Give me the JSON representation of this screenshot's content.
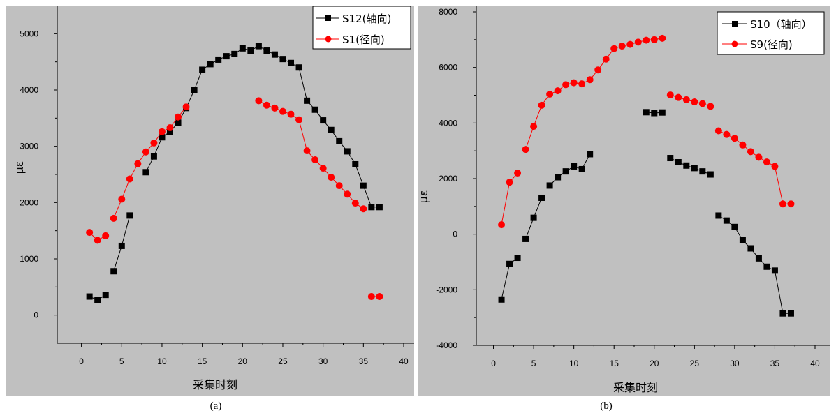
{
  "captions": {
    "a": "(a)",
    "b": "(b)"
  },
  "colors": {
    "panel_bg": "#c0c0c0",
    "series_black": "#000000",
    "series_red": "#ff0000"
  },
  "chart_data": [
    {
      "type": "line",
      "xlabel": "采集时刻",
      "ylabel": "με",
      "xlim": [
        -3,
        40
      ],
      "ylim": [
        -500,
        5500
      ],
      "xticks": [
        0,
        5,
        10,
        15,
        20,
        25,
        30,
        35,
        40
      ],
      "yticks": [
        0,
        1000,
        2000,
        3000,
        4000,
        5000
      ],
      "legend_position": "top-right",
      "grid": false,
      "series": [
        {
          "name": "S12(轴向)",
          "color": "#000000",
          "marker": "square",
          "segments": [
            [
              [
                1,
                330
              ],
              [
                2,
                270
              ],
              [
                3,
                360
              ]
            ],
            [
              [
                4,
                780
              ],
              [
                5,
                1230
              ],
              [
                6,
                1770
              ]
            ],
            [
              [
                8,
                2540
              ],
              [
                9,
                2820
              ],
              [
                10,
                3160
              ],
              [
                11,
                3260
              ],
              [
                12,
                3420
              ],
              [
                13,
                3680
              ],
              [
                14,
                4000
              ],
              [
                15,
                4360
              ],
              [
                16,
                4460
              ],
              [
                17,
                4540
              ],
              [
                18,
                4600
              ],
              [
                19,
                4640
              ],
              [
                20,
                4740
              ],
              [
                21,
                4700
              ],
              [
                22,
                4780
              ],
              [
                23,
                4700
              ],
              [
                24,
                4630
              ],
              [
                25,
                4550
              ],
              [
                26,
                4480
              ],
              [
                27,
                4400
              ],
              [
                28,
                3810
              ],
              [
                29,
                3650
              ],
              [
                30,
                3460
              ],
              [
                31,
                3290
              ],
              [
                32,
                3090
              ],
              [
                33,
                2910
              ],
              [
                34,
                2680
              ],
              [
                35,
                2300
              ],
              [
                36,
                1920
              ],
              [
                37,
                1920
              ]
            ]
          ]
        },
        {
          "name": "S1(径向)",
          "color": "#ff0000",
          "marker": "circle",
          "segments": [
            [
              [
                1,
                1470
              ],
              [
                2,
                1330
              ],
              [
                3,
                1410
              ]
            ],
            [
              [
                4,
                1720
              ],
              [
                5,
                2060
              ],
              [
                6,
                2420
              ],
              [
                7,
                2690
              ],
              [
                8,
                2900
              ],
              [
                9,
                3060
              ],
              [
                10,
                3260
              ],
              [
                11,
                3330
              ],
              [
                12,
                3520
              ],
              [
                13,
                3700
              ]
            ],
            [
              [
                22,
                3810
              ],
              [
                23,
                3730
              ],
              [
                24,
                3680
              ],
              [
                25,
                3620
              ],
              [
                26,
                3570
              ],
              [
                27,
                3470
              ],
              [
                28,
                2920
              ],
              [
                29,
                2760
              ],
              [
                30,
                2610
              ],
              [
                31,
                2450
              ],
              [
                32,
                2300
              ],
              [
                33,
                2150
              ],
              [
                34,
                1990
              ],
              [
                35,
                1890
              ]
            ],
            [
              [
                36,
                330
              ],
              [
                37,
                330
              ]
            ]
          ]
        }
      ]
    },
    {
      "type": "line",
      "xlabel": "采集时刻",
      "ylabel": "με",
      "xlim": [
        -3,
        40
      ],
      "ylim": [
        -4000,
        8000
      ],
      "xticks": [
        0,
        5,
        10,
        15,
        20,
        25,
        30,
        35,
        40
      ],
      "yticks": [
        -4000,
        -2000,
        0,
        2000,
        4000,
        6000,
        8000
      ],
      "legend_position": "top-right",
      "grid": false,
      "series": [
        {
          "name": "S10（轴向）",
          "color": "#000000",
          "marker": "square",
          "segments": [
            [
              [
                1,
                -2350
              ],
              [
                2,
                -1070
              ],
              [
                3,
                -850
              ]
            ],
            [
              [
                4,
                -170
              ],
              [
                5,
                590
              ],
              [
                6,
                1310
              ]
            ],
            [
              [
                7,
                1750
              ],
              [
                8,
                2050
              ],
              [
                9,
                2260
              ],
              [
                10,
                2440
              ],
              [
                11,
                2340
              ],
              [
                12,
                2880
              ]
            ],
            [
              [
                19,
                4390
              ],
              [
                20,
                4360
              ],
              [
                21,
                4380
              ]
            ],
            [
              [
                22,
                2740
              ],
              [
                23,
                2590
              ],
              [
                24,
                2470
              ],
              [
                25,
                2380
              ],
              [
                26,
                2260
              ],
              [
                27,
                2150
              ]
            ],
            [
              [
                28,
                670
              ],
              [
                29,
                490
              ],
              [
                30,
                260
              ],
              [
                31,
                -220
              ],
              [
                32,
                -510
              ],
              [
                33,
                -870
              ],
              [
                34,
                -1170
              ],
              [
                35,
                -1310
              ],
              [
                36,
                -2850
              ],
              [
                37,
                -2850
              ]
            ]
          ]
        },
        {
          "name": "S9(径向)",
          "color": "#ff0000",
          "marker": "circle",
          "segments": [
            [
              [
                1,
                340
              ],
              [
                2,
                1870
              ],
              [
                3,
                2200
              ]
            ],
            [
              [
                4,
                3050
              ],
              [
                5,
                3880
              ],
              [
                6,
                4640
              ],
              [
                7,
                5040
              ],
              [
                8,
                5160
              ],
              [
                9,
                5380
              ],
              [
                10,
                5450
              ],
              [
                11,
                5410
              ],
              [
                12,
                5560
              ],
              [
                13,
                5910
              ],
              [
                14,
                6300
              ],
              [
                15,
                6680
              ],
              [
                16,
                6770
              ],
              [
                17,
                6830
              ],
              [
                18,
                6910
              ],
              [
                19,
                6980
              ],
              [
                20,
                7000
              ],
              [
                21,
                7050
              ]
            ],
            [
              [
                22,
                5010
              ],
              [
                23,
                4920
              ],
              [
                24,
                4840
              ],
              [
                25,
                4760
              ],
              [
                26,
                4700
              ],
              [
                27,
                4600
              ]
            ],
            [
              [
                28,
                3720
              ],
              [
                29,
                3590
              ],
              [
                30,
                3450
              ],
              [
                31,
                3210
              ],
              [
                32,
                2970
              ],
              [
                33,
                2770
              ],
              [
                34,
                2600
              ],
              [
                35,
                2440
              ],
              [
                36,
                1090
              ],
              [
                37,
                1090
              ]
            ]
          ]
        }
      ]
    }
  ]
}
